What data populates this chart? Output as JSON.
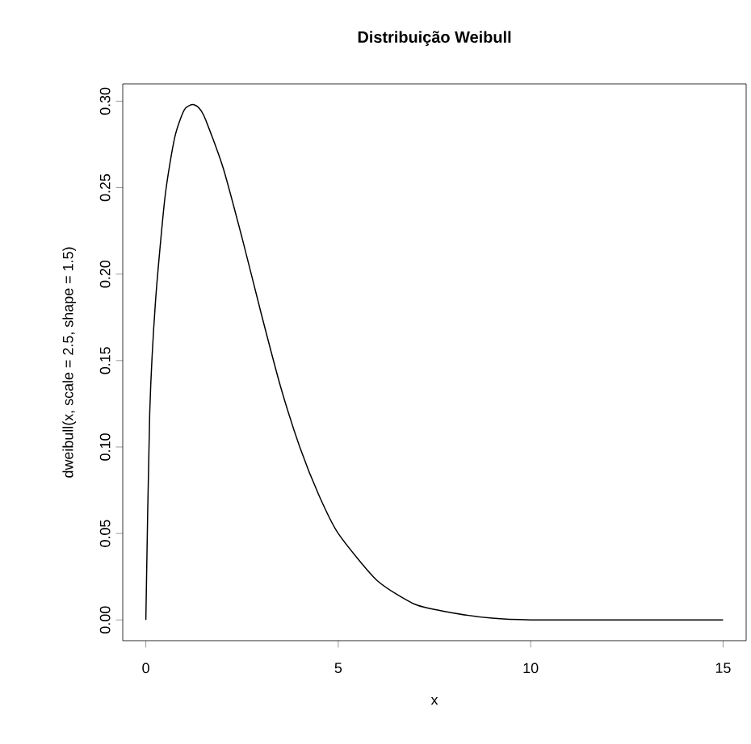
{
  "chart_data": {
    "type": "line",
    "title": "Distribuição Weibull",
    "xlabel": "x",
    "ylabel": "dweibull(x, scale = 2.5, shape = 1.5)",
    "x": [
      0,
      0.1,
      0.25,
      0.5,
      0.75,
      1,
      1.25,
      1.5,
      2,
      2.5,
      3,
      3.5,
      4,
      4.5,
      5,
      6,
      7,
      8,
      9,
      10,
      12,
      15
    ],
    "series": [
      {
        "color": "#000000",
        "values": [
          0,
          0.119,
          0.184,
          0.245,
          0.279,
          0.295,
          0.298,
          0.292,
          0.262,
          0.221,
          0.177,
          0.135,
          0.1,
          0.072,
          0.05,
          0.023,
          0.009,
          0.004,
          0.001,
          0.0,
          0.0,
          0.0
        ]
      }
    ],
    "xlim": [
      -0.6,
      15.6
    ],
    "ylim": [
      -0.012,
      0.31
    ],
    "xticks": [
      0,
      5,
      10,
      15
    ],
    "yticks": [
      {
        "value": 0,
        "label": "0.00"
      },
      {
        "value": 0.05,
        "label": "0.05"
      },
      {
        "value": 0.1,
        "label": "0.10"
      },
      {
        "value": 0.15,
        "label": "0.15"
      },
      {
        "value": 0.2,
        "label": "0.20"
      },
      {
        "value": 0.25,
        "label": "0.25"
      },
      {
        "value": 0.3,
        "label": "0.30"
      }
    ],
    "grid": false,
    "marker": "none",
    "line_style": "solid"
  }
}
